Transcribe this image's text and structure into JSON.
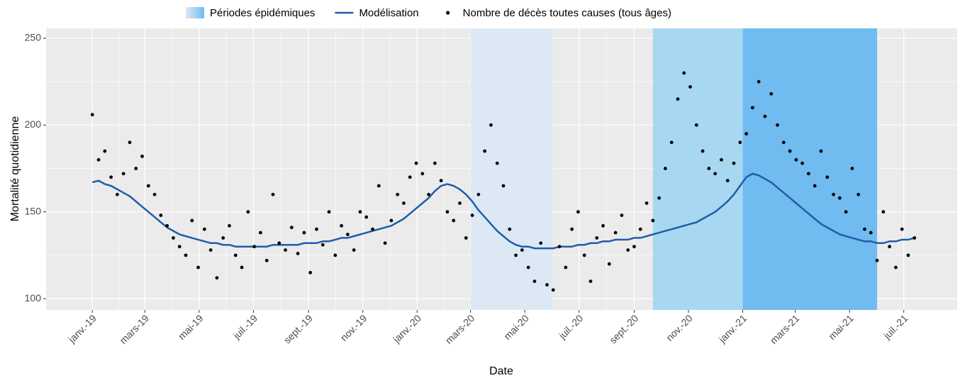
{
  "chart_data": {
    "type": "scatter-line",
    "x_label": "Date",
    "y_label": "Mortalité quotidienne",
    "xlim": [
      "2018-11-10",
      "2021-08-30"
    ],
    "xticks": [
      {
        "value": "2019-01-01",
        "label": "janv.-19"
      },
      {
        "value": "2019-03-01",
        "label": "mars-19"
      },
      {
        "value": "2019-05-01",
        "label": "mai-19"
      },
      {
        "value": "2019-07-01",
        "label": "juil.-19"
      },
      {
        "value": "2019-09-01",
        "label": "sept.-19"
      },
      {
        "value": "2019-11-01",
        "label": "nov.-19"
      },
      {
        "value": "2020-01-01",
        "label": "janv.-20"
      },
      {
        "value": "2020-03-01",
        "label": "mars-20"
      },
      {
        "value": "2020-05-01",
        "label": "mai-20"
      },
      {
        "value": "2020-07-01",
        "label": "juil.-20"
      },
      {
        "value": "2020-09-01",
        "label": "sept.-20"
      },
      {
        "value": "2020-11-01",
        "label": "nov.-20"
      },
      {
        "value": "2021-01-01",
        "label": "janv.-21"
      },
      {
        "value": "2021-03-01",
        "label": "mars-21"
      },
      {
        "value": "2021-05-01",
        "label": "mai-21"
      },
      {
        "value": "2021-07-01",
        "label": "juil.-21"
      }
    ],
    "ylim": [
      93.5,
      255.7
    ],
    "yticks": [
      100,
      150,
      200,
      250
    ],
    "grid": true,
    "legend": "top",
    "periods_name": "Périodes épidémiques",
    "periods": [
      {
        "start": "2020-03-01",
        "end": "2020-06-01",
        "color": "#dce9f5"
      },
      {
        "start": "2020-09-22",
        "end": "2021-01-01",
        "color": "#a8d7f1"
      },
      {
        "start": "2021-01-01",
        "end": "2021-06-01",
        "color": "#70bbf0"
      }
    ],
    "x": [
      "2019-01-01",
      "2019-01-08",
      "2019-01-15",
      "2019-01-22",
      "2019-01-29",
      "2019-02-05",
      "2019-02-12",
      "2019-02-19",
      "2019-02-26",
      "2019-03-05",
      "2019-03-12",
      "2019-03-19",
      "2019-03-26",
      "2019-04-02",
      "2019-04-09",
      "2019-04-16",
      "2019-04-23",
      "2019-04-30",
      "2019-05-07",
      "2019-05-14",
      "2019-05-21",
      "2019-05-28",
      "2019-06-04",
      "2019-06-11",
      "2019-06-18",
      "2019-06-25",
      "2019-07-02",
      "2019-07-09",
      "2019-07-16",
      "2019-07-23",
      "2019-07-30",
      "2019-08-06",
      "2019-08-13",
      "2019-08-20",
      "2019-08-27",
      "2019-09-03",
      "2019-09-10",
      "2019-09-17",
      "2019-09-24",
      "2019-10-01",
      "2019-10-08",
      "2019-10-15",
      "2019-10-22",
      "2019-10-29",
      "2019-11-05",
      "2019-11-12",
      "2019-11-19",
      "2019-11-26",
      "2019-12-03",
      "2019-12-10",
      "2019-12-17",
      "2019-12-24",
      "2019-12-31",
      "2020-01-07",
      "2020-01-14",
      "2020-01-21",
      "2020-01-28",
      "2020-02-04",
      "2020-02-11",
      "2020-02-18",
      "2020-02-25",
      "2020-03-03",
      "2020-03-10",
      "2020-03-17",
      "2020-03-24",
      "2020-03-31",
      "2020-04-07",
      "2020-04-14",
      "2020-04-21",
      "2020-04-28",
      "2020-05-05",
      "2020-05-12",
      "2020-05-19",
      "2020-05-26",
      "2020-06-02",
      "2020-06-09",
      "2020-06-16",
      "2020-06-23",
      "2020-06-30",
      "2020-07-07",
      "2020-07-14",
      "2020-07-21",
      "2020-07-28",
      "2020-08-04",
      "2020-08-11",
      "2020-08-18",
      "2020-08-25",
      "2020-09-01",
      "2020-09-08",
      "2020-09-15",
      "2020-09-22",
      "2020-09-29",
      "2020-10-06",
      "2020-10-13",
      "2020-10-20",
      "2020-10-27",
      "2020-11-03",
      "2020-11-10",
      "2020-11-17",
      "2020-11-24",
      "2020-12-01",
      "2020-12-08",
      "2020-12-15",
      "2020-12-22",
      "2020-12-29",
      "2021-01-05",
      "2021-01-12",
      "2021-01-19",
      "2021-01-26",
      "2021-02-02",
      "2021-02-09",
      "2021-02-16",
      "2021-02-23",
      "2021-03-02",
      "2021-03-09",
      "2021-03-16",
      "2021-03-23",
      "2021-03-30",
      "2021-04-06",
      "2021-04-13",
      "2021-04-20",
      "2021-04-27",
      "2021-05-04",
      "2021-05-11",
      "2021-05-18",
      "2021-05-25",
      "2021-06-01",
      "2021-06-08",
      "2021-06-15",
      "2021-06-22",
      "2021-06-29",
      "2021-07-06",
      "2021-07-13"
    ],
    "series": [
      {
        "name": "Modélisation",
        "kind": "line",
        "color": "#1f5ea8",
        "values": [
          167,
          168,
          166,
          165,
          163,
          161,
          159,
          156,
          153,
          150,
          147,
          144,
          141,
          139,
          137,
          136,
          135,
          134,
          133,
          132,
          132,
          131,
          131,
          130,
          130,
          130,
          130,
          130,
          130,
          131,
          131,
          131,
          131,
          131,
          132,
          132,
          132,
          133,
          133,
          134,
          135,
          135,
          136,
          137,
          138,
          139,
          140,
          141,
          142,
          144,
          146,
          149,
          152,
          155,
          158,
          162,
          165,
          166,
          165,
          163,
          160,
          156,
          151,
          147,
          143,
          139,
          136,
          133,
          131,
          130,
          130,
          129,
          129,
          129,
          129,
          130,
          130,
          130,
          131,
          131,
          132,
          132,
          133,
          133,
          134,
          134,
          134,
          135,
          135,
          136,
          137,
          138,
          139,
          140,
          141,
          142,
          143,
          144,
          146,
          148,
          150,
          153,
          156,
          160,
          165,
          170,
          172,
          171,
          169,
          167,
          164,
          161,
          158,
          155,
          152,
          149,
          146,
          143,
          141,
          139,
          137,
          136,
          135,
          134,
          133,
          133,
          132,
          132,
          133,
          133,
          134,
          134,
          135
        ]
      },
      {
        "name": "Nombre de décès toutes causes (tous âges)",
        "kind": "points",
        "color": "#000000",
        "values": [
          206,
          180,
          185,
          170,
          160,
          172,
          190,
          175,
          182,
          165,
          160,
          148,
          142,
          135,
          130,
          125,
          145,
          118,
          140,
          128,
          112,
          135,
          142,
          125,
          118,
          150,
          130,
          138,
          122,
          160,
          132,
          128,
          141,
          126,
          138,
          115,
          140,
          131,
          150,
          125,
          142,
          137,
          128,
          150,
          147,
          140,
          165,
          132,
          145,
          160,
          155,
          170,
          178,
          172,
          160,
          178,
          168,
          150,
          145,
          155,
          135,
          148,
          160,
          185,
          200,
          178,
          165,
          140,
          125,
          128,
          118,
          110,
          132,
          108,
          105,
          130,
          118,
          140,
          150,
          125,
          110,
          135,
          142,
          120,
          138,
          148,
          128,
          130,
          140,
          155,
          145,
          158,
          175,
          190,
          215,
          230,
          222,
          200,
          185,
          175,
          172,
          180,
          168,
          178,
          190,
          195,
          210,
          225,
          205,
          218,
          200,
          190,
          185,
          180,
          178,
          172,
          165,
          185,
          170,
          160,
          158,
          150,
          175,
          160,
          140,
          138,
          122,
          150,
          130,
          118,
          140,
          125,
          135
        ]
      }
    ]
  }
}
